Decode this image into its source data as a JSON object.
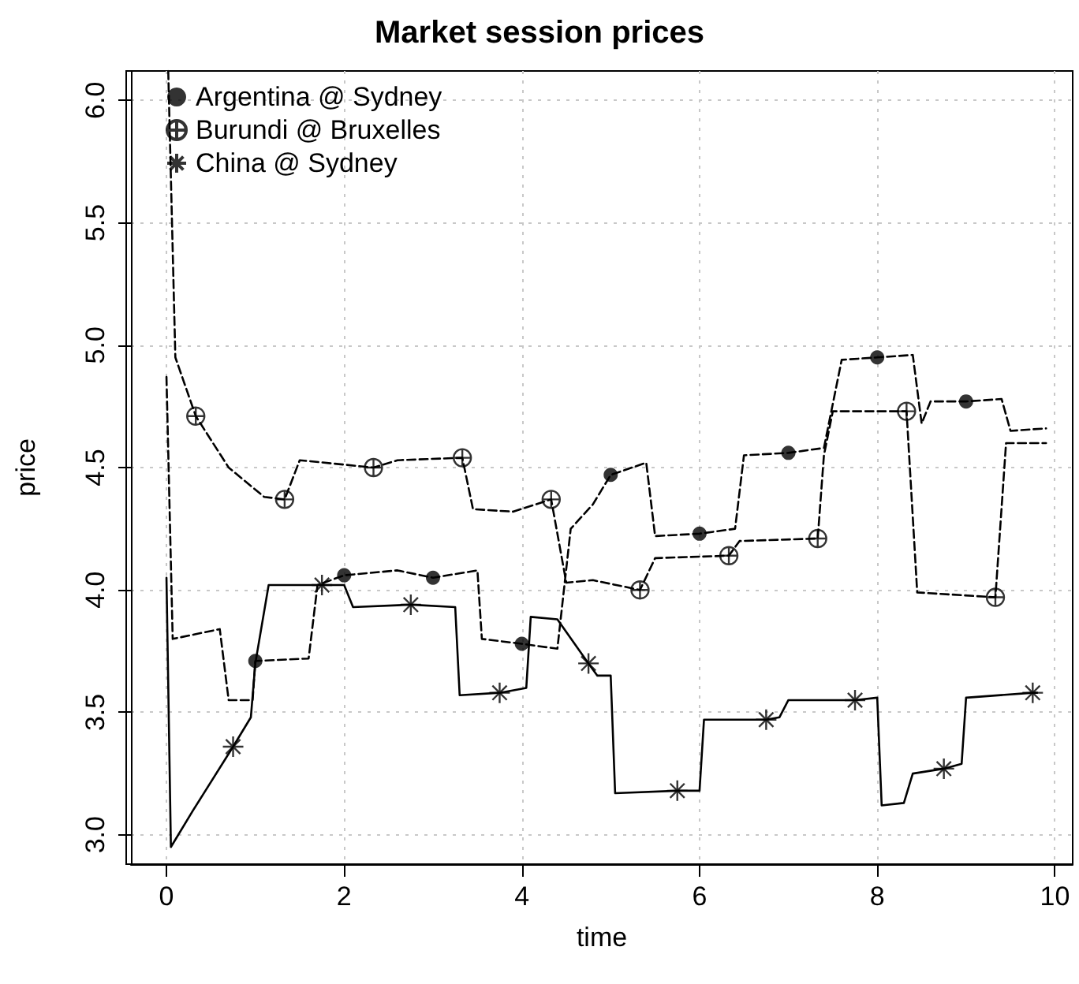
{
  "chart_data": {
    "type": "line",
    "title": "Market session prices",
    "xlabel": "time",
    "ylabel": "price",
    "xlim": [
      -0.4,
      10.2
    ],
    "ylim": [
      2.88,
      6.12
    ],
    "xticks": [
      0,
      2,
      4,
      6,
      8,
      10
    ],
    "yticks": [
      {
        "value": 3,
        "label": "3.0"
      },
      {
        "value": 3.5,
        "label": "3.5"
      },
      {
        "value": 4,
        "label": "4.0"
      },
      {
        "value": 4.5,
        "label": "4.5"
      },
      {
        "value": 5,
        "label": "5.0"
      },
      {
        "value": 5.5,
        "label": "5.5"
      },
      {
        "value": 6,
        "label": "6.0"
      }
    ],
    "grid": true,
    "legend": "top left",
    "series": [
      {
        "color": "#000000",
        "line_style": "dashed",
        "marker": "none",
        "x": [
          0,
          0.07,
          0.6,
          0.7,
          0.97,
          1.0,
          1.6,
          1.7,
          2.0,
          2.6,
          3.0,
          3.5,
          3.55,
          4.0,
          4.4,
          4.55,
          4.8,
          5.0,
          5.4,
          5.5,
          6.0,
          6.4,
          6.5,
          7.0,
          7.4,
          7.6,
          8.0,
          8.4,
          8.5,
          8.6,
          9.0,
          9.4,
          9.5,
          9.9
        ],
        "values": [
          4.87,
          3.8,
          3.84,
          3.55,
          3.55,
          3.71,
          3.72,
          4.02,
          4.06,
          4.08,
          4.05,
          4.08,
          3.8,
          3.78,
          3.76,
          4.25,
          4.35,
          4.47,
          4.52,
          4.22,
          4.23,
          4.25,
          4.55,
          4.56,
          4.58,
          4.94,
          4.95,
          4.96,
          4.68,
          4.77,
          4.77,
          4.78,
          4.65,
          4.66
        ]
      },
      {
        "color": "#000000",
        "line_style": "dashed",
        "marker": "none",
        "x": [
          0.02,
          0.1,
          0.33,
          0.7,
          1.1,
          1.33,
          1.5,
          2.33,
          2.6,
          3.33,
          3.45,
          3.9,
          4.33,
          4.5,
          4.8,
          5.33,
          5.5,
          6.33,
          6.45,
          7.33,
          7.4,
          7.5,
          8.33,
          8.45,
          9.33,
          9.45,
          9.9
        ],
        "values": [
          6.12,
          4.95,
          4.71,
          4.5,
          4.38,
          4.37,
          4.53,
          4.5,
          4.53,
          4.54,
          4.33,
          4.32,
          4.37,
          4.03,
          4.04,
          4.0,
          4.13,
          4.14,
          4.2,
          4.21,
          4.55,
          4.73,
          4.73,
          3.99,
          3.97,
          4.6,
          4.6
        ]
      },
      {
        "color": "#000000",
        "line_style": "solid",
        "marker": "none",
        "x": [
          0,
          0.05,
          0.3,
          0.75,
          0.95,
          1.0,
          1.15,
          1.75,
          2.0,
          2.1,
          2.75,
          3.25,
          3.3,
          3.75,
          4.05,
          4.1,
          4.4,
          4.75,
          4.85,
          5.0,
          5.05,
          5.75,
          6.0,
          6.05,
          6.75,
          6.9,
          7.0,
          7.75,
          8.0,
          8.05,
          8.3,
          8.4,
          8.75,
          8.95,
          9.0,
          9.75,
          9.8
        ],
        "values": [
          4.05,
          2.95,
          3.1,
          3.36,
          3.48,
          3.7,
          4.02,
          4.02,
          4.02,
          3.93,
          3.94,
          3.93,
          3.57,
          3.58,
          3.6,
          3.89,
          3.88,
          3.7,
          3.65,
          3.65,
          3.17,
          3.18,
          3.18,
          3.47,
          3.47,
          3.48,
          3.55,
          3.55,
          3.56,
          3.12,
          3.13,
          3.25,
          3.27,
          3.29,
          3.56,
          3.58,
          3.58
        ]
      },
      {
        "type": "scatter",
        "name": "Argentina @ Sydney",
        "color": "#000000",
        "marker": "circle",
        "x": [
          1,
          2,
          3,
          4,
          5,
          6,
          7,
          8,
          9
        ],
        "values": [
          3.71,
          4.06,
          4.05,
          3.78,
          4.47,
          4.23,
          4.56,
          4.95,
          4.77
        ]
      },
      {
        "type": "scatter",
        "name": "Burundi @ Bruxelles",
        "color": "#000000",
        "marker": "circle",
        "x": [
          0.33,
          1.33,
          2.33,
          3.33,
          4.33,
          5.33,
          6.33,
          7.33,
          8.33,
          9.33
        ],
        "values": [
          4.71,
          4.37,
          4.5,
          4.54,
          4.37,
          4.0,
          4.14,
          4.21,
          4.73,
          3.97
        ]
      },
      {
        "type": "scatter",
        "name": "China @ Sydney",
        "color": "#000000",
        "marker": "cross",
        "x": [
          0.75,
          1.75,
          2.75,
          3.75,
          4.75,
          5.75,
          6.75,
          7.75,
          8.75,
          9.75
        ],
        "values": [
          3.36,
          4.02,
          3.94,
          3.58,
          3.7,
          3.18,
          3.47,
          3.55,
          3.27,
          3.58
        ]
      }
    ]
  }
}
